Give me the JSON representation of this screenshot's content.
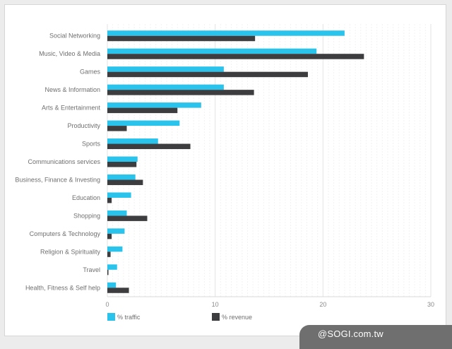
{
  "chart_data": {
    "type": "bar",
    "orientation": "horizontal",
    "categories": [
      "Social Networking",
      "Music, Video & Media",
      "Games",
      "News & Information",
      "Arts & Entertainment",
      "Productivity",
      "Sports",
      "Communications services",
      "Business, Finance & Investing",
      "Education",
      "Shopping",
      "Computers & Technology",
      "Religion & Spirituality",
      "Travel",
      "Health, Fitness & Self help"
    ],
    "series": [
      {
        "name": "% traffic",
        "color": "#29c3ec",
        "values": [
          22.0,
          19.4,
          10.8,
          10.8,
          8.7,
          6.7,
          4.7,
          2.8,
          2.6,
          2.2,
          1.8,
          1.6,
          1.4,
          0.9,
          0.8
        ]
      },
      {
        "name": "% revenue",
        "color": "#3d3d3f",
        "values": [
          13.7,
          23.8,
          18.6,
          13.6,
          6.5,
          1.8,
          7.7,
          2.7,
          3.3,
          0.4,
          3.7,
          0.4,
          0.3,
          0.1,
          2.0
        ]
      }
    ],
    "xlim": [
      0,
      30
    ],
    "xticks": [
      0,
      10,
      20,
      30
    ],
    "grid": true,
    "legend_position": "bottom-left",
    "title": "",
    "xlabel": "",
    "ylabel": ""
  },
  "watermark": "@SOGI.com.tw"
}
